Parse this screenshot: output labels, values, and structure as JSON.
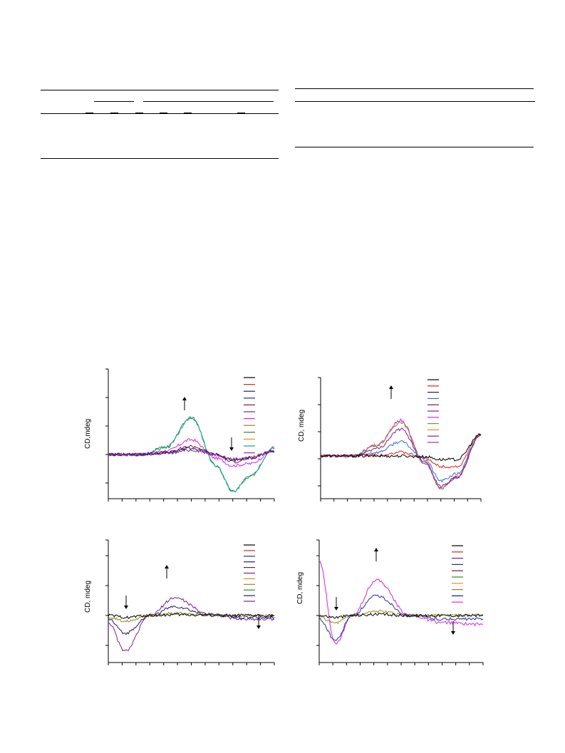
{
  "colors": {
    "black": "#000000",
    "red": "#e0211c",
    "blue": "#1f2f9f",
    "navy": "#21177a",
    "purple": "#7e1e8f",
    "maroon": "#7a1d33",
    "magenta": "#e020e0",
    "olive": "#8c8a1f",
    "green": "#2a8a2a",
    "orange": "#f08a1c",
    "teal": "#15a0a0",
    "violet": "#9a28c8",
    "lightblue": "#3a6be0",
    "darkred": "#8a1a1a"
  },
  "figures": {
    "panels": [
      {
        "id": "a",
        "ylabel": "CD,mdeg",
        "arrows": [
          "up",
          "down"
        ],
        "legend_colors": [
          "black",
          "red",
          "navy",
          "blue",
          "maroon",
          "purple",
          "magenta",
          "olive",
          "green",
          "orange",
          "teal",
          "violet"
        ]
      },
      {
        "id": "b",
        "ylabel": "CD, mdeg",
        "arrows": [
          "up"
        ],
        "legend_colors": [
          "black",
          "red",
          "navy",
          "lightblue",
          "maroon",
          "purple",
          "magenta",
          "olive",
          "orange",
          "purple",
          "violet"
        ]
      },
      {
        "id": "c",
        "ylabel": "CD, mdeg",
        "arrows": [
          "down",
          "up",
          "down"
        ],
        "legend_colors": [
          "black",
          "red",
          "blue",
          "navy",
          "maroon",
          "purple",
          "orange",
          "olive",
          "green",
          "navy",
          "purple"
        ]
      },
      {
        "id": "d",
        "ylabel": "CD, mdeg",
        "arrows": [
          "up",
          "down",
          "down"
        ],
        "legend_colors": [
          "black",
          "red",
          "purple",
          "blue",
          "maroon",
          "green",
          "orange",
          "olive",
          "navy",
          "magenta"
        ]
      }
    ]
  },
  "chart_data": [
    {
      "type": "line",
      "title": "",
      "ylabel": "CD,mdeg",
      "xlabel": "",
      "x": [
        0,
        0.2,
        0.35,
        0.5,
        0.65,
        0.75,
        0.85,
        1.0
      ],
      "series": [
        {
          "color": "green",
          "values": [
            0,
            0,
            0.2,
            1.0,
            -0.3,
            -1.0,
            -0.6,
            0.2
          ]
        },
        {
          "color": "teal",
          "values": [
            0,
            0,
            0.2,
            1.0,
            -0.3,
            -1.0,
            -0.6,
            0.2
          ]
        },
        {
          "color": "magenta",
          "values": [
            0,
            0,
            0.1,
            0.4,
            -0.1,
            -0.3,
            -0.25,
            0.1
          ]
        },
        {
          "color": "maroon",
          "values": [
            0,
            0,
            0.05,
            0.22,
            0,
            -0.2,
            -0.1,
            0.1
          ]
        },
        {
          "color": "navy",
          "values": [
            0,
            0,
            0.05,
            0.18,
            0,
            -0.15,
            -0.1,
            0.1
          ]
        },
        {
          "color": "purple",
          "values": [
            0,
            0,
            0.03,
            0.12,
            0,
            -0.12,
            -0.08,
            0.1
          ]
        }
      ]
    },
    {
      "type": "line",
      "title": "",
      "ylabel": "CD, mdeg",
      "xlabel": "",
      "x": [
        0,
        0.2,
        0.35,
        0.5,
        0.65,
        0.75,
        0.85,
        1.0
      ],
      "series": [
        {
          "color": "magenta",
          "values": [
            0,
            0,
            0.3,
            1.0,
            -0.2,
            -0.9,
            -0.6,
            0.6
          ]
        },
        {
          "color": "olive",
          "values": [
            0,
            0,
            0.3,
            0.95,
            -0.2,
            -0.9,
            -0.6,
            0.6
          ]
        },
        {
          "color": "purple",
          "values": [
            0,
            0,
            0.2,
            0.75,
            -0.15,
            -0.85,
            -0.6,
            0.6
          ]
        },
        {
          "color": "lightblue",
          "values": [
            0,
            0,
            0.1,
            0.4,
            -0.1,
            -0.7,
            -0.5,
            0.6
          ]
        },
        {
          "color": "red",
          "values": [
            0,
            0,
            0.02,
            0.1,
            -0.05,
            -0.3,
            -0.3,
            0.6
          ]
        },
        {
          "color": "black",
          "values": [
            0,
            0,
            0,
            0.0,
            -0.02,
            -0.1,
            -0.1,
            0.6
          ]
        }
      ]
    },
    {
      "type": "line",
      "title": "",
      "ylabel": "CD, mdeg",
      "xlabel": "",
      "x": [
        0,
        0.1,
        0.25,
        0.4,
        0.6,
        0.8,
        1.0
      ],
      "series": [
        {
          "color": "purple",
          "values": [
            -0.2,
            -1.0,
            0,
            0.5,
            0.05,
            -0.1,
            -0.1
          ]
        },
        {
          "color": "navy",
          "values": [
            -0.1,
            -0.5,
            0,
            0.25,
            0.03,
            -0.05,
            -0.05
          ]
        },
        {
          "color": "olive",
          "values": [
            -0.05,
            -0.15,
            0,
            0.06,
            0.02,
            0.0,
            0.0
          ]
        },
        {
          "color": "black",
          "values": [
            0,
            -0.05,
            0,
            0.02,
            0.01,
            0.0,
            0.0
          ]
        }
      ]
    },
    {
      "type": "line",
      "title": "",
      "ylabel": "CD, mdeg",
      "xlabel": "",
      "x": [
        0,
        0.1,
        0.2,
        0.35,
        0.55,
        0.75,
        1.0
      ],
      "series": [
        {
          "color": "magenta",
          "values": [
            1.5,
            -0.8,
            0,
            1.0,
            0,
            -0.2,
            -0.25
          ]
        },
        {
          "color": "blue",
          "values": [
            -0.1,
            -0.7,
            0,
            0.55,
            0,
            -0.1,
            -0.1
          ]
        },
        {
          "color": "olive",
          "values": [
            -0.05,
            -0.2,
            0,
            0.12,
            0,
            0,
            0
          ]
        },
        {
          "color": "black",
          "values": [
            0,
            -0.05,
            0,
            0.03,
            0,
            0,
            0
          ]
        }
      ]
    }
  ]
}
